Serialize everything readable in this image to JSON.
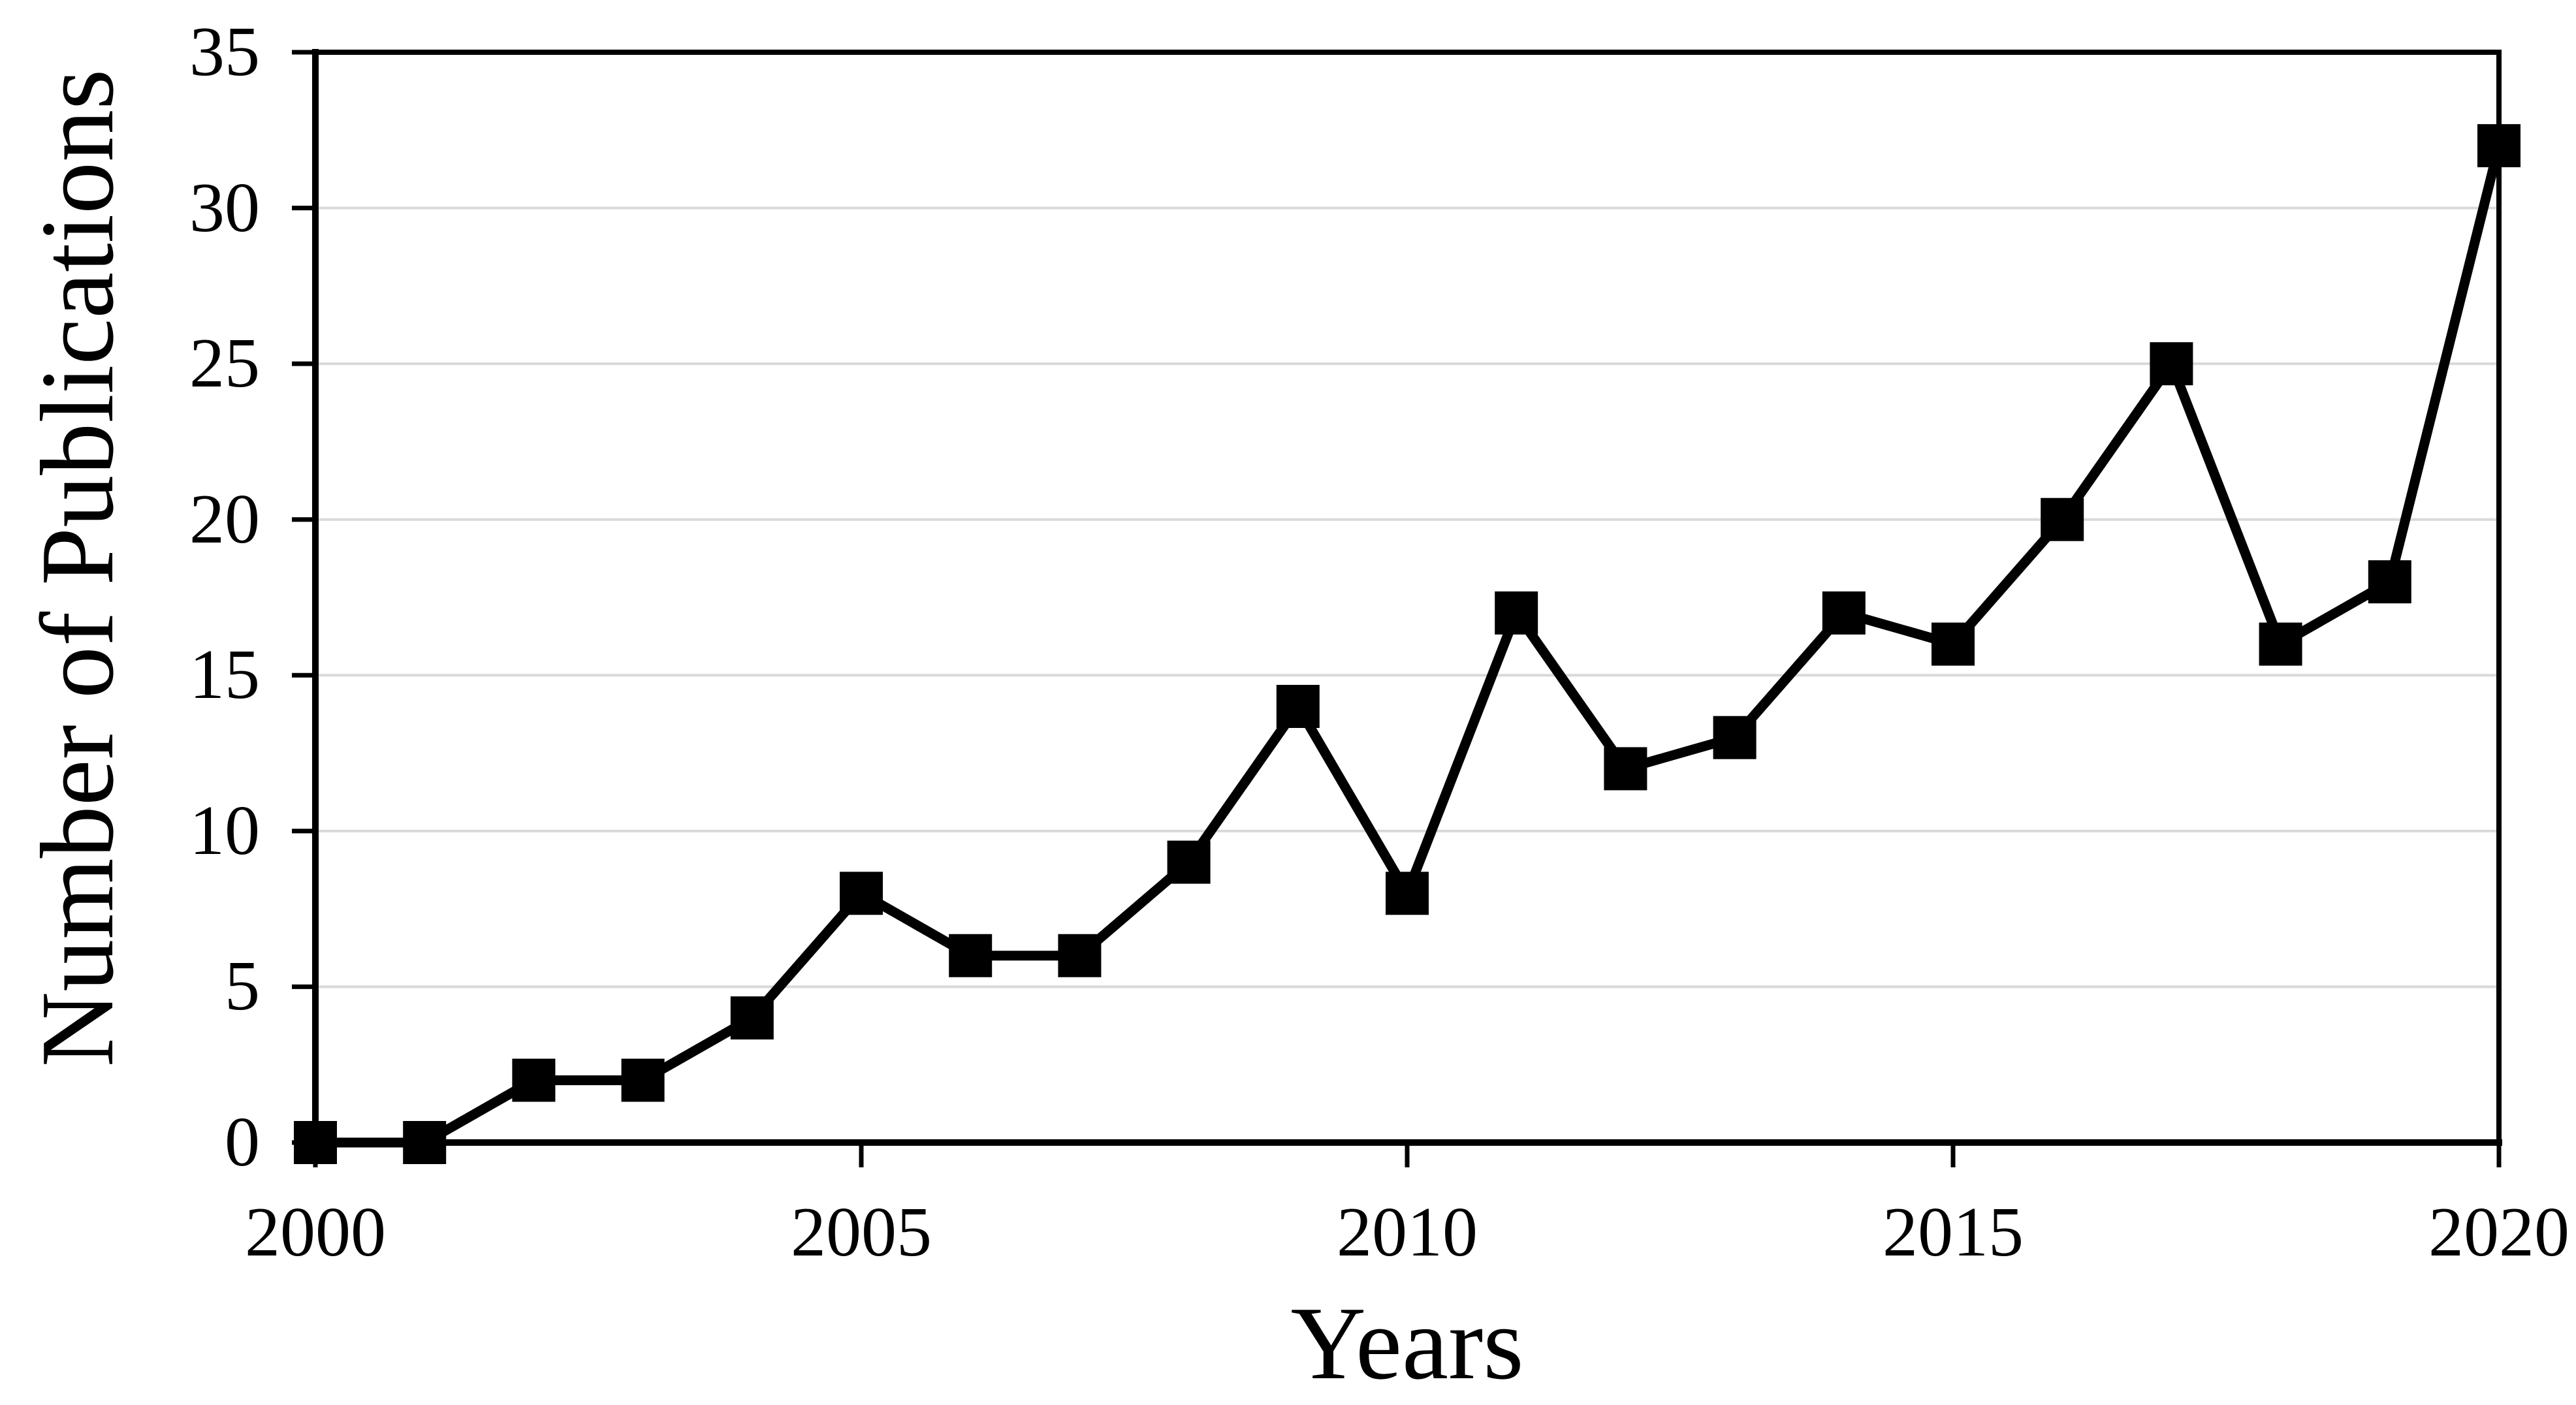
{
  "figure": {
    "background_color": "#ffffff",
    "text_color": "#000000"
  },
  "chart_data": {
    "type": "line",
    "title": "",
    "xlabel": "Years",
    "ylabel": "Number of Publications",
    "x": [
      2000,
      2001,
      2002,
      2003,
      2004,
      2005,
      2006,
      2007,
      2008,
      2009,
      2010,
      2011,
      2012,
      2013,
      2014,
      2015,
      2016,
      2017,
      2018,
      2019,
      2020
    ],
    "values": [
      0,
      0,
      2,
      2,
      4,
      8,
      6,
      6,
      9,
      14,
      8,
      17,
      12,
      13,
      17,
      16,
      20,
      25,
      16,
      18,
      32
    ],
    "xlim": [
      2000,
      2020
    ],
    "ylim": [
      0,
      35
    ],
    "yticks": [
      0,
      5,
      10,
      15,
      20,
      25,
      30,
      35
    ],
    "xticks": [
      2000,
      2005,
      2010,
      2015,
      2020
    ],
    "gridline_values": [
      5,
      10,
      15,
      20,
      25,
      30
    ],
    "grid": "horizontal",
    "legend": "none",
    "marker": "square",
    "line_color": "#000000",
    "marker_color": "#000000",
    "grid_color": "#d9d9d9",
    "axis_color": "#000000"
  }
}
